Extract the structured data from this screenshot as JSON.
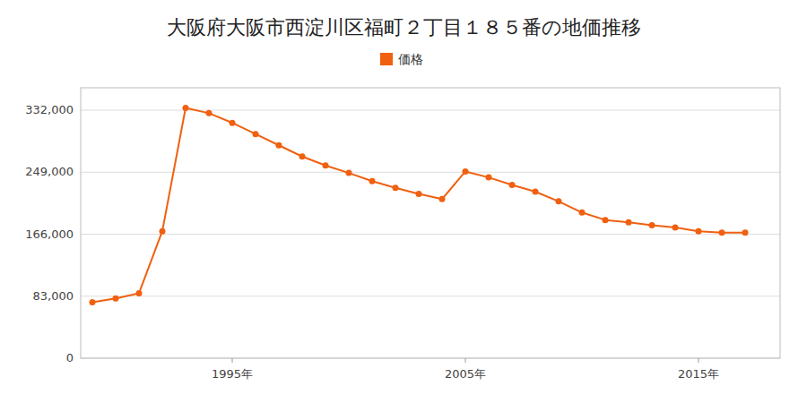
{
  "chart_data": {
    "type": "line",
    "title": "大阪府大阪市西淀川区福町２丁目１８５番の地価推移",
    "x": [
      1989,
      1990,
      1991,
      1992,
      1993,
      1994,
      1995,
      1996,
      1997,
      1998,
      1999,
      2000,
      2001,
      2002,
      2003,
      2004,
      2005,
      2006,
      2007,
      2008,
      2009,
      2010,
      2011,
      2012,
      2013,
      2014,
      2015,
      2016,
      2017
    ],
    "series": [
      {
        "name": "価格",
        "color": "#f06010",
        "marker": "circle",
        "values": [
          75000,
          80000,
          87000,
          170000,
          335000,
          328000,
          315000,
          300000,
          285000,
          270000,
          258000,
          248000,
          237000,
          228000,
          220000,
          213000,
          250000,
          242000,
          232000,
          223000,
          210000,
          195000,
          185000,
          182000,
          178000,
          175000,
          170000,
          168000,
          168000
        ]
      }
    ],
    "xlim": [
      1988.5,
      2018.5
    ],
    "xticks": [
      {
        "value": 1995,
        "label": "1995年"
      },
      {
        "value": 2005,
        "label": "2005年"
      },
      {
        "value": 2015,
        "label": "2015年"
      }
    ],
    "ylim": [
      0,
      362000
    ],
    "yticks": [
      0,
      {
        "value": 83000,
        "label": "83,000"
      },
      {
        "value": 166000,
        "label": "166,000"
      },
      {
        "value": 249000,
        "label": "249,000"
      },
      {
        "value": 332000,
        "label": "332,000"
      }
    ],
    "grid": true,
    "legend": "top"
  }
}
